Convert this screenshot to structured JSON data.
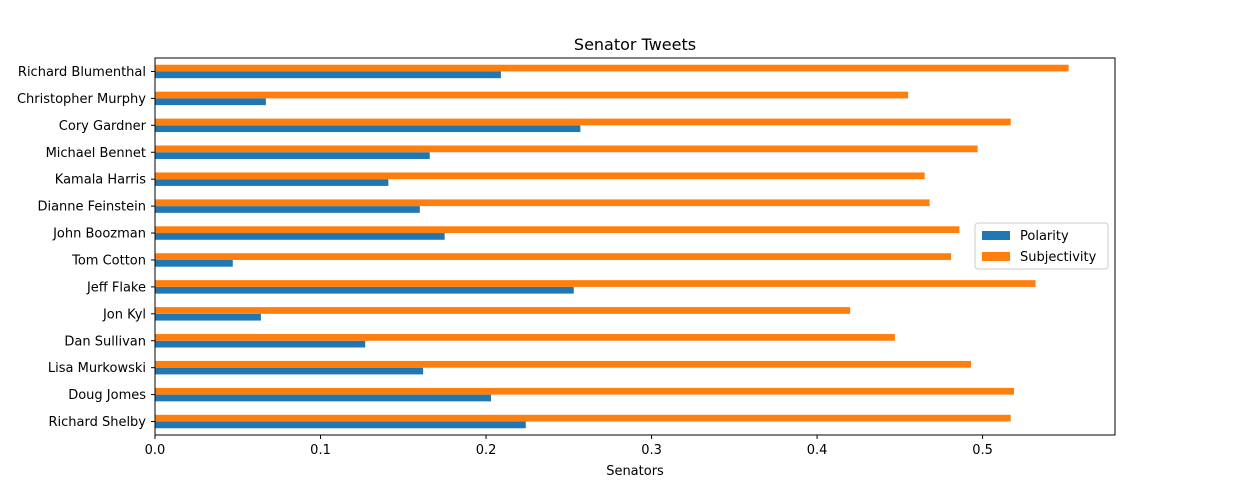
{
  "chart_data": {
    "type": "bar",
    "orientation": "horizontal",
    "title": "Senator Tweets",
    "xlabel": "Senators",
    "ylabel": "",
    "xlim": [
      0,
      0.58
    ],
    "xticks": [
      "0.0",
      "0.1",
      "0.2",
      "0.3",
      "0.4",
      "0.5"
    ],
    "xtick_values": [
      0.0,
      0.1,
      0.2,
      0.3,
      0.4,
      0.5
    ],
    "legend_position": "right",
    "grid": false,
    "categories": [
      "Richard Shelby",
      "Doug Jomes",
      "Lisa Murkowski",
      "Dan Sullivan",
      "Jon Kyl",
      "Jeff Flake",
      "Tom Cotton",
      "John Boozman",
      "Dianne Feinstein",
      "Kamala Harris",
      "Michael Bennet",
      "Cory Gardner",
      "Christopher Murphy",
      "Richard Blumenthal"
    ],
    "series": [
      {
        "name": "Polarity",
        "color": "#1f77b4",
        "values": [
          0.224,
          0.203,
          0.162,
          0.127,
          0.064,
          0.253,
          0.047,
          0.175,
          0.16,
          0.141,
          0.166,
          0.257,
          0.067,
          0.209
        ]
      },
      {
        "name": "Subjectivity",
        "color": "#ff7f0e",
        "values": [
          0.517,
          0.519,
          0.493,
          0.447,
          0.42,
          0.532,
          0.481,
          0.486,
          0.468,
          0.465,
          0.497,
          0.517,
          0.455,
          0.552
        ]
      }
    ]
  }
}
